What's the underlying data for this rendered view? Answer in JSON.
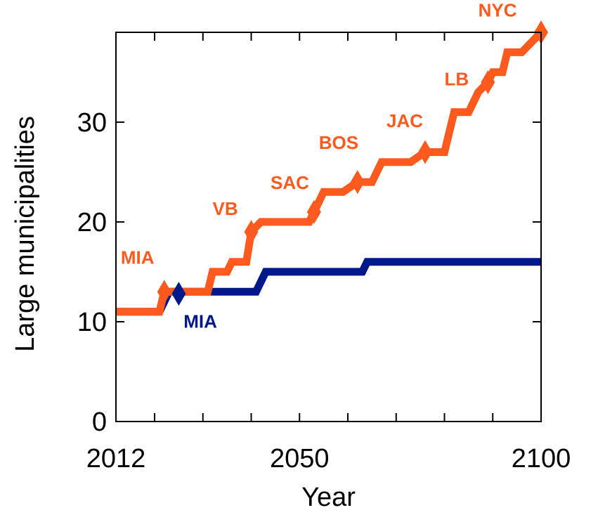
{
  "chart_data": {
    "type": "line",
    "xlabel": "Year",
    "ylabel": "Large municipalities",
    "xlim": [
      2012,
      2100
    ],
    "ylim": [
      0,
      39
    ],
    "xticks": [
      2012,
      2050,
      2100
    ],
    "xminor": [
      2020,
      2030,
      2040,
      2060,
      2070,
      2080,
      2090
    ],
    "yticks": [
      0,
      10,
      20,
      30
    ],
    "grid": false,
    "series": [
      {
        "color": "#00188a",
        "points": [
          [
            2012,
            11
          ],
          [
            2021,
            11
          ],
          [
            2023,
            13
          ],
          [
            2041,
            13
          ],
          [
            2043,
            15
          ],
          [
            2063,
            15
          ],
          [
            2064,
            16
          ],
          [
            2100,
            16
          ]
        ]
      },
      {
        "color": "#ff5a1e",
        "points": [
          [
            2012,
            11
          ],
          [
            2021,
            11
          ],
          [
            2022,
            13
          ],
          [
            2031,
            13
          ],
          [
            2032,
            15
          ],
          [
            2035,
            15
          ],
          [
            2036,
            16
          ],
          [
            2039,
            16
          ],
          [
            2040,
            19
          ],
          [
            2042,
            20
          ],
          [
            2052,
            20
          ],
          [
            2055,
            23
          ],
          [
            2059,
            23
          ],
          [
            2062,
            24
          ],
          [
            2065,
            24
          ],
          [
            2067,
            26
          ],
          [
            2073,
            26
          ],
          [
            2076,
            27
          ],
          [
            2080,
            27
          ],
          [
            2082,
            31
          ],
          [
            2085,
            31
          ],
          [
            2087,
            33
          ],
          [
            2089,
            34
          ],
          [
            2090,
            35
          ],
          [
            2092,
            35
          ],
          [
            2093,
            37
          ],
          [
            2096,
            37
          ],
          [
            2098,
            38
          ],
          [
            2100,
            39
          ]
        ]
      }
    ],
    "markers": [
      {
        "x": 2025,
        "y": 12.8,
        "color": "#00188a"
      },
      {
        "x": 2022,
        "y": 13,
        "color": "#ff5a1e"
      },
      {
        "x": 2040,
        "y": 19,
        "color": "#ff5a1e"
      },
      {
        "x": 2053,
        "y": 21,
        "color": "#ff5a1e"
      },
      {
        "x": 2062,
        "y": 24,
        "color": "#ff5a1e"
      },
      {
        "x": 2076,
        "y": 27,
        "color": "#ff5a1e"
      },
      {
        "x": 2089,
        "y": 34,
        "color": "#ff5a1e"
      },
      {
        "x": 2100,
        "y": 39,
        "color": "#ff5a1e"
      }
    ],
    "annotations": [
      {
        "text": "MIA",
        "x": 2013,
        "y": 15.8,
        "color": "#ff5a1e"
      },
      {
        "text": "MIA",
        "x": 2026,
        "y": 9.4,
        "color": "#00188a"
      },
      {
        "text": "VB",
        "x": 2032,
        "y": 20.7,
        "color": "#ff5a1e"
      },
      {
        "text": "SAC",
        "x": 2044,
        "y": 23.3,
        "color": "#ff5a1e"
      },
      {
        "text": "BOS",
        "x": 2054,
        "y": 27.3,
        "color": "#ff5a1e"
      },
      {
        "text": "JAC",
        "x": 2068,
        "y": 29.5,
        "color": "#ff5a1e"
      },
      {
        "text": "LB",
        "x": 2080,
        "y": 33.7,
        "color": "#ff5a1e"
      },
      {
        "text": "NYC",
        "x": 2087,
        "y": 40.6,
        "color": "#ff5a1e"
      }
    ]
  }
}
